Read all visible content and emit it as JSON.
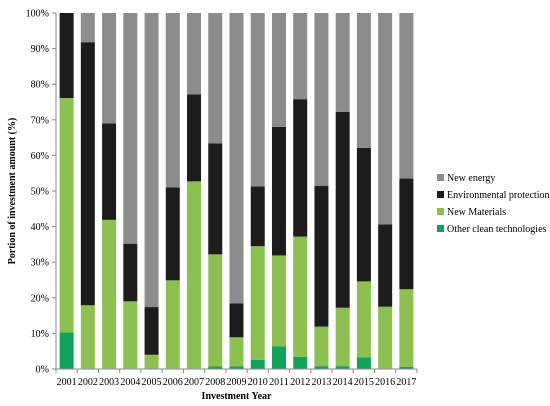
{
  "chart_data": {
    "type": "bar",
    "stacked": true,
    "title": "",
    "xlabel": "Investment Year",
    "ylabel": "Portion of investment amount (%)",
    "ylim": [
      0,
      100
    ],
    "y_ticks": [
      "0%",
      "10%",
      "20%",
      "30%",
      "40%",
      "50%",
      "60%",
      "70%",
      "80%",
      "90%",
      "100%"
    ],
    "grid": false,
    "legend_position": "right",
    "categories": [
      "2001",
      "2002",
      "2003",
      "2004",
      "2005",
      "2006",
      "2007",
      "2008",
      "2009",
      "2010",
      "2011",
      "2012",
      "2013",
      "2014",
      "2015",
      "2016",
      "2017"
    ],
    "series": [
      {
        "name": "Other clean technologies",
        "color": "#12a35a",
        "values": [
          10.3,
          0.2,
          0.2,
          0.2,
          0.2,
          0.2,
          0.2,
          0.7,
          0.7,
          2.6,
          6.4,
          3.4,
          0.8,
          0.8,
          3.3,
          0.2,
          0.6
        ]
      },
      {
        "name": "New Materials",
        "color": "#8cc152",
        "values": [
          65.8,
          17.7,
          41.7,
          18.8,
          3.8,
          24.7,
          52.5,
          31.5,
          8.2,
          31.9,
          25.5,
          33.8,
          11.1,
          16.4,
          21.3,
          17.3,
          21.8
        ]
      },
      {
        "name": "Environmental protection",
        "color": "#1c1c1c",
        "values": [
          23.9,
          73.9,
          27.1,
          16.2,
          13.4,
          26.1,
          24.4,
          31.2,
          9.5,
          16.8,
          36.1,
          38.6,
          39.5,
          55.0,
          37.5,
          23.1,
          31.1
        ]
      },
      {
        "name": "New energy",
        "color": "#8c8c8c",
        "values": [
          0,
          8.2,
          31.0,
          64.8,
          82.6,
          49.0,
          22.9,
          36.6,
          81.6,
          48.7,
          32.0,
          24.2,
          48.6,
          27.8,
          37.9,
          59.4,
          46.5
        ]
      }
    ],
    "legend_order": [
      "New energy",
      "Environmental protection",
      "New Materials",
      "Other clean technologies"
    ]
  }
}
